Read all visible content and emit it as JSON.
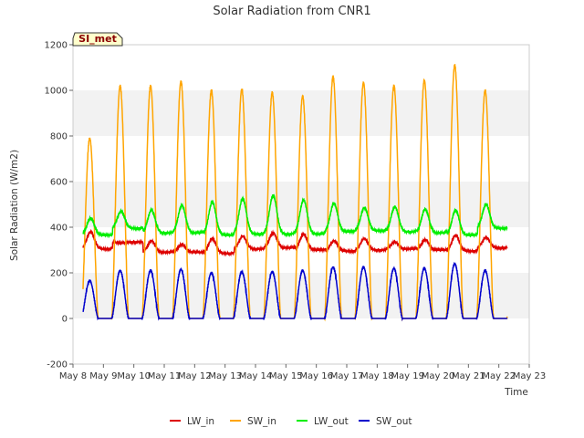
{
  "chart_data": {
    "type": "line",
    "title": "Solar Radiation from CNR1",
    "xlabel": "Time",
    "ylabel": "Solar Radiation (W/m2)",
    "badge": "SI_met",
    "xlim": [
      8,
      23
    ],
    "ylim": [
      -200,
      1200
    ],
    "x_ticks": [
      8,
      9,
      10,
      11,
      12,
      13,
      14,
      15,
      16,
      17,
      18,
      19,
      20,
      21,
      22,
      23
    ],
    "x_tick_labels": [
      "May 8",
      "May 9",
      "May 10",
      "May 11",
      "May 12",
      "May 13",
      "May 14",
      "May 15",
      "May 16",
      "May 17",
      "May 18",
      "May 19",
      "May 20",
      "May 21",
      "May 22",
      "May 23"
    ],
    "y_ticks": [
      -200,
      0,
      200,
      400,
      600,
      800,
      1000,
      1200
    ],
    "y_tick_labels": [
      "-200",
      "0",
      "200",
      "400",
      "600",
      "800",
      "1000",
      "1200"
    ],
    "grid_bands": true,
    "legend_position": "bottom-center",
    "days": [
      8.33,
      9.33,
      10.33,
      11.33,
      12.33,
      13.33,
      14.33,
      15.33,
      16.33,
      17.33,
      18.33,
      19.33,
      20.33,
      21.33
    ],
    "series": [
      {
        "name": "LW_in",
        "color": "#dd0000",
        "kind": "longwave",
        "baseline": [
          305,
          335,
          290,
          290,
          285,
          305,
          310,
          300,
          295,
          300,
          305,
          300,
          295,
          310
        ],
        "peak": [
          380,
          330,
          340,
          325,
          350,
          360,
          375,
          370,
          340,
          350,
          335,
          345,
          365,
          355
        ]
      },
      {
        "name": "SW_in",
        "color": "#ffa500",
        "kind": "shortwave",
        "baseline": [
          0,
          0,
          0,
          0,
          0,
          0,
          0,
          0,
          0,
          0,
          0,
          0,
          0,
          0
        ],
        "peak": [
          790,
          1020,
          1020,
          1040,
          1000,
          1005,
          990,
          975,
          1060,
          1035,
          1020,
          1045,
          1110,
          1000
        ]
      },
      {
        "name": "LW_out",
        "color": "#00ee00",
        "kind": "longwave",
        "baseline": [
          365,
          395,
          375,
          375,
          365,
          370,
          370,
          370,
          380,
          385,
          380,
          375,
          365,
          395
        ],
        "peak": [
          440,
          470,
          475,
          495,
          510,
          525,
          540,
          520,
          505,
          485,
          490,
          480,
          475,
          500
        ]
      },
      {
        "name": "SW_out",
        "color": "#0000cc",
        "kind": "shortwave",
        "baseline": [
          0,
          0,
          0,
          0,
          0,
          0,
          0,
          0,
          0,
          0,
          0,
          0,
          0,
          0
        ],
        "peak": [
          165,
          210,
          210,
          215,
          200,
          205,
          205,
          210,
          225,
          225,
          220,
          220,
          240,
          210
        ]
      }
    ]
  }
}
